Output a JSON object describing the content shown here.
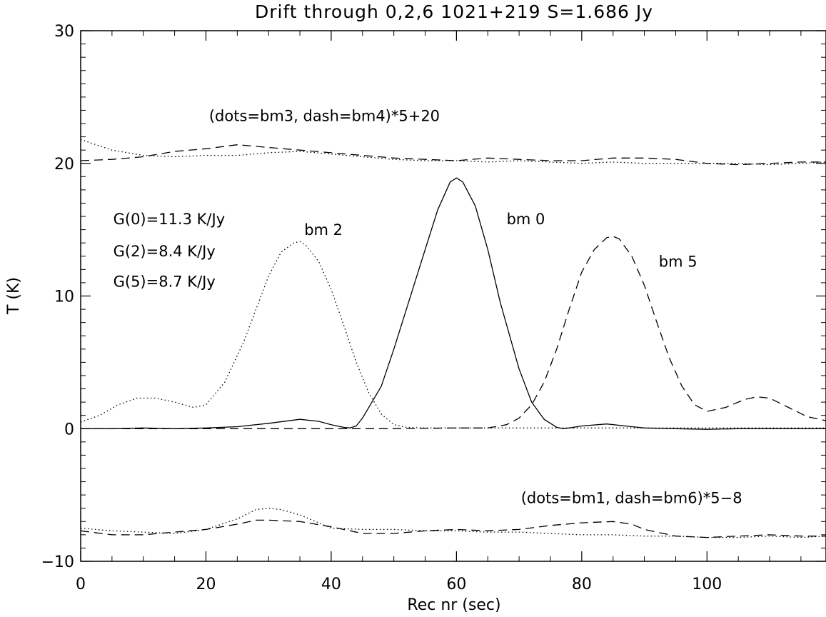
{
  "chart_data": {
    "type": "line",
    "title": "Drift through 0,2,6 1021+219 S=1.686 Jy",
    "xlabel": "Rec nr (sec)",
    "ylabel": "T (K)",
    "xlim": [
      0,
      119
    ],
    "ylim": [
      -10,
      30
    ],
    "x_ticks": [
      0,
      20,
      40,
      60,
      80,
      100
    ],
    "y_ticks": [
      -10,
      0,
      10,
      20,
      30
    ],
    "x_ticks_labels": [
      "0",
      "20",
      "40",
      "60",
      "80",
      "100"
    ],
    "y_ticks_labels": [
      "−10",
      "0",
      "10",
      "20",
      "30"
    ],
    "grid": false,
    "series": [
      {
        "name": "bm 0",
        "style": "solid",
        "x": [
          0,
          5,
          10,
          15,
          20,
          25,
          30,
          35,
          38,
          40,
          42,
          43,
          44,
          45,
          48,
          50,
          53,
          55,
          57,
          59,
          60,
          61,
          63,
          65,
          67,
          70,
          72,
          74,
          76,
          77,
          78,
          80,
          84,
          88,
          90,
          95,
          100,
          105,
          110,
          115,
          119
        ],
        "values": [
          0.0,
          0.0,
          0.05,
          0.0,
          0.05,
          0.15,
          0.4,
          0.7,
          0.55,
          0.3,
          0.1,
          0.05,
          0.2,
          0.8,
          3.2,
          6.0,
          10.5,
          13.5,
          16.5,
          18.6,
          18.9,
          18.6,
          16.8,
          13.5,
          9.5,
          4.5,
          2.0,
          0.7,
          0.1,
          0.0,
          0.05,
          0.2,
          0.35,
          0.15,
          0.05,
          0.0,
          -0.05,
          0.0,
          0.0,
          0.0,
          0.0
        ]
      },
      {
        "name": "bm 2",
        "style": "dotted",
        "x": [
          0,
          3,
          6,
          9,
          12,
          15,
          18,
          20,
          23,
          26,
          28,
          30,
          32,
          34,
          35,
          36,
          38,
          40,
          42,
          44,
          46,
          48,
          50,
          52,
          55,
          60,
          70,
          80,
          90,
          100,
          110,
          119
        ],
        "values": [
          0.5,
          1.0,
          1.8,
          2.3,
          2.3,
          2.0,
          1.6,
          1.8,
          3.5,
          6.5,
          9.0,
          11.5,
          13.3,
          14.0,
          14.1,
          13.8,
          12.6,
          10.5,
          7.8,
          5.0,
          2.7,
          1.1,
          0.3,
          0.1,
          0.05,
          0.05,
          0.05,
          0.05,
          0.05,
          0.05,
          0.05,
          0.05
        ]
      },
      {
        "name": "bm 5",
        "style": "dashed",
        "x": [
          0,
          10,
          20,
          30,
          40,
          50,
          60,
          65,
          68,
          70,
          72,
          74,
          76,
          78,
          80,
          82,
          84,
          85,
          86,
          88,
          90,
          92,
          94,
          96,
          98,
          100,
          103,
          106,
          108,
          110,
          113,
          116,
          119
        ],
        "values": [
          0.0,
          0.0,
          0.0,
          0.0,
          0.0,
          0.0,
          0.05,
          0.05,
          0.3,
          0.8,
          1.8,
          3.5,
          6.0,
          9.0,
          11.8,
          13.5,
          14.4,
          14.5,
          14.3,
          13.0,
          10.8,
          8.0,
          5.3,
          3.2,
          1.8,
          1.3,
          1.6,
          2.2,
          2.4,
          2.3,
          1.6,
          0.9,
          0.6
        ]
      },
      {
        "name": "bm3",
        "style": "dotted",
        "x": [
          0,
          5,
          10,
          15,
          20,
          25,
          30,
          35,
          40,
          45,
          50,
          55,
          60,
          65,
          70,
          75,
          80,
          85,
          90,
          95,
          100,
          105,
          110,
          115,
          119
        ],
        "values": [
          21.8,
          21.0,
          20.6,
          20.5,
          20.6,
          20.6,
          20.8,
          20.9,
          20.7,
          20.5,
          20.3,
          20.2,
          20.2,
          20.1,
          20.2,
          20.1,
          20.0,
          20.1,
          20.0,
          20.0,
          20.0,
          20.0,
          19.9,
          20.0,
          20.1
        ]
      },
      {
        "name": "bm4",
        "style": "dashed",
        "x": [
          0,
          5,
          10,
          15,
          20,
          25,
          30,
          35,
          40,
          45,
          50,
          55,
          60,
          65,
          70,
          75,
          80,
          85,
          90,
          95,
          100,
          105,
          110,
          115,
          119
        ],
        "values": [
          20.2,
          20.3,
          20.5,
          20.9,
          21.1,
          21.4,
          21.2,
          21.0,
          20.8,
          20.6,
          20.4,
          20.3,
          20.2,
          20.4,
          20.3,
          20.2,
          20.2,
          20.4,
          20.4,
          20.3,
          20.0,
          19.9,
          20.0,
          20.1,
          20.1
        ]
      },
      {
        "name": "bm1",
        "style": "dotted",
        "x": [
          0,
          5,
          10,
          15,
          20,
          25,
          28,
          30,
          32,
          35,
          38,
          40,
          45,
          50,
          55,
          60,
          65,
          70,
          75,
          80,
          85,
          90,
          95,
          100,
          105,
          110,
          115,
          119
        ],
        "values": [
          -7.5,
          -7.7,
          -7.8,
          -7.9,
          -7.6,
          -6.8,
          -6.1,
          -6.0,
          -6.1,
          -6.5,
          -7.1,
          -7.5,
          -7.6,
          -7.6,
          -7.7,
          -7.7,
          -7.8,
          -7.8,
          -7.9,
          -8.0,
          -8.0,
          -8.1,
          -8.1,
          -8.2,
          -8.2,
          -8.1,
          -8.2,
          -8.1
        ]
      },
      {
        "name": "bm6",
        "style": "dashed",
        "x": [
          0,
          5,
          10,
          15,
          20,
          25,
          28,
          30,
          35,
          40,
          45,
          50,
          55,
          60,
          65,
          70,
          75,
          80,
          85,
          88,
          90,
          95,
          100,
          105,
          110,
          115,
          119
        ],
        "values": [
          -7.7,
          -8.0,
          -8.0,
          -7.8,
          -7.6,
          -7.2,
          -6.9,
          -6.9,
          -7.0,
          -7.4,
          -7.9,
          -7.9,
          -7.7,
          -7.6,
          -7.7,
          -7.6,
          -7.3,
          -7.1,
          -7.0,
          -7.2,
          -7.6,
          -8.1,
          -8.2,
          -8.1,
          -8.0,
          -8.1,
          -8.1
        ]
      }
    ],
    "annotations": [
      {
        "text": "(dots=bm3, dash=bm4)*5+20",
        "x": 20.5,
        "y": 23.2
      },
      {
        "text": "G(0)=11.3 K/Jy",
        "x": 5.2,
        "y": 15.4
      },
      {
        "text": "G(2)=8.4 K/Jy",
        "x": 5.2,
        "y": 13.0
      },
      {
        "text": "G(5)=8.7 K/Jy",
        "x": 5.2,
        "y": 10.7
      },
      {
        "text": "bm 2",
        "x": 35.7,
        "y": 14.6
      },
      {
        "text": "bm 0",
        "x": 68.0,
        "y": 15.4
      },
      {
        "text": "bm 5",
        "x": 92.3,
        "y": 12.2
      },
      {
        "text": "(dots=bm1, dash=bm6)*5−8",
        "x": 70.3,
        "y": -5.6
      }
    ]
  }
}
